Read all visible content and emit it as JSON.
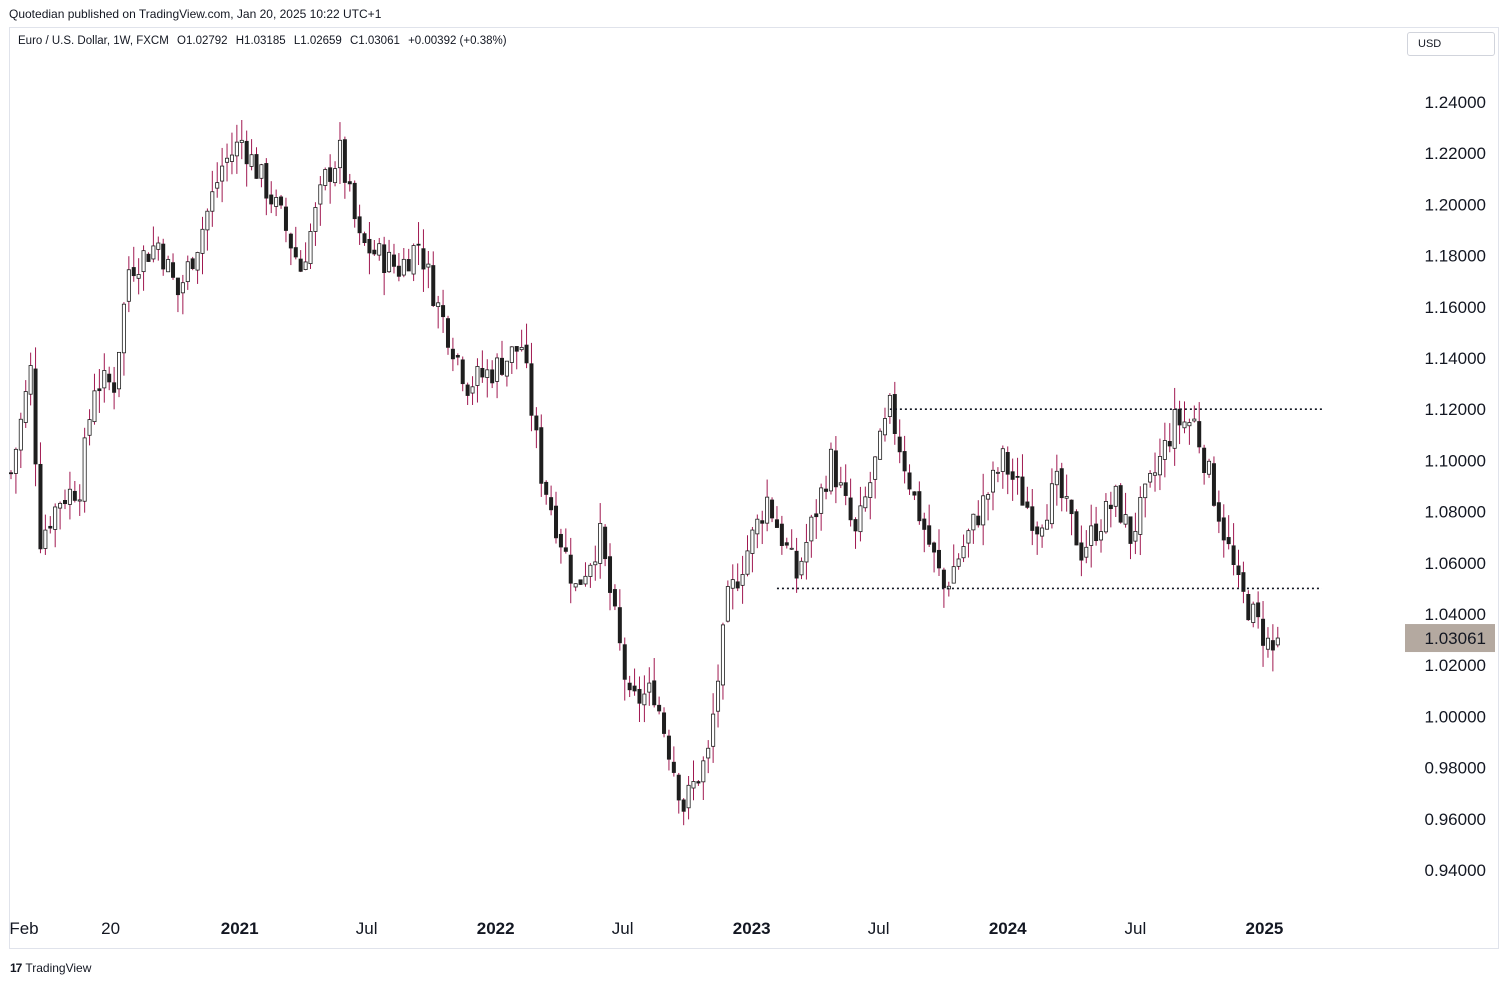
{
  "header": {
    "published": "Quotedian published on TradingView.com, Jan 20, 2025 10:22 UTC+1"
  },
  "symbol": {
    "name": "Euro / U.S. Dollar, 1W, FXCM",
    "open": "O1.02792",
    "high": "H1.03185",
    "low": "L1.02659",
    "close": "C1.03061",
    "change": "+0.00392 (+0.38%)"
  },
  "currency_button": {
    "label": "USD"
  },
  "footer": {
    "logo_text": "TradingView",
    "logo_mark": "17"
  },
  "colors": {
    "candle": "#1e1e1e",
    "wick": "#a01850",
    "label_bg": "#b4a9a0",
    "dotted": "#131722"
  },
  "chart_data": {
    "type": "candlestick",
    "title": "Euro / U.S. Dollar, 1W, FXCM",
    "ylim": [
      0.93,
      1.255
    ],
    "y_ticks": [
      "1.24000",
      "1.22000",
      "1.20000",
      "1.18000",
      "1.16000",
      "1.14000",
      "1.12000",
      "1.10000",
      "1.08000",
      "1.06000",
      "1.04000",
      "1.02000",
      "1.00000",
      "0.98000",
      "0.96000",
      "0.94000"
    ],
    "x_ticks": [
      {
        "label": "Feb",
        "date": "2020-02-01",
        "bold": false
      },
      {
        "label": "20",
        "date": "2020-07-01",
        "bold": false
      },
      {
        "label": "2021",
        "date": "2021-01-01",
        "bold": true
      },
      {
        "label": "Jul",
        "date": "2021-07-01",
        "bold": false
      },
      {
        "label": "2022",
        "date": "2022-01-01",
        "bold": true
      },
      {
        "label": "Jul",
        "date": "2022-07-01",
        "bold": false
      },
      {
        "label": "2023",
        "date": "2023-01-01",
        "bold": true
      },
      {
        "label": "Jul",
        "date": "2023-07-01",
        "bold": false
      },
      {
        "label": "2024",
        "date": "2024-01-01",
        "bold": true
      },
      {
        "label": "Jul",
        "date": "2024-07-01",
        "bold": false
      },
      {
        "label": "2025",
        "date": "2025-01-01",
        "bold": true
      }
    ],
    "last_price": "1.03061",
    "last_price_value": 1.03061,
    "horizontal_lines": [
      {
        "name": "resistance",
        "y": 1.12,
        "from": "2023-07-17",
        "to": "2025-03-24"
      },
      {
        "name": "support",
        "y": 1.05,
        "from": "2023-02-06",
        "to": "2025-03-24"
      }
    ],
    "price_path": [
      [
        "2020-02-10",
        1.095
      ],
      [
        "2020-03-09",
        1.135
      ],
      [
        "2020-03-23",
        1.07
      ],
      [
        "2020-04-20",
        1.085
      ],
      [
        "2020-05-18",
        1.09
      ],
      [
        "2020-06-08",
        1.13
      ],
      [
        "2020-07-06",
        1.13
      ],
      [
        "2020-07-27",
        1.175
      ],
      [
        "2020-09-07",
        1.185
      ],
      [
        "2020-10-05",
        1.165
      ],
      [
        "2020-11-02",
        1.185
      ],
      [
        "2020-12-07",
        1.215
      ],
      [
        "2021-01-04",
        1.225
      ],
      [
        "2021-03-01",
        1.195
      ],
      [
        "2021-03-29",
        1.175
      ],
      [
        "2021-05-03",
        1.21
      ],
      [
        "2021-05-24",
        1.22
      ],
      [
        "2021-06-21",
        1.185
      ],
      [
        "2021-08-16",
        1.175
      ],
      [
        "2021-09-13",
        1.185
      ],
      [
        "2021-10-11",
        1.16
      ],
      [
        "2021-11-22",
        1.13
      ],
      [
        "2021-12-27",
        1.135
      ],
      [
        "2022-02-07",
        1.145
      ],
      [
        "2022-03-07",
        1.095
      ],
      [
        "2022-04-25",
        1.05
      ],
      [
        "2022-05-30",
        1.07
      ],
      [
        "2022-07-11",
        1.005
      ],
      [
        "2022-08-15",
        1.01
      ],
      [
        "2022-09-26",
        0.965
      ],
      [
        "2022-10-31",
        0.985
      ],
      [
        "2022-11-28",
        1.045
      ],
      [
        "2023-01-23",
        1.085
      ],
      [
        "2023-03-06",
        1.055
      ],
      [
        "2023-04-24",
        1.1
      ],
      [
        "2023-05-29",
        1.07
      ],
      [
        "2023-07-17",
        1.12
      ],
      [
        "2023-08-21",
        1.085
      ],
      [
        "2023-10-02",
        1.05
      ],
      [
        "2023-12-25",
        1.1
      ],
      [
        "2024-02-12",
        1.075
      ],
      [
        "2024-03-11",
        1.09
      ],
      [
        "2024-04-15",
        1.065
      ],
      [
        "2024-06-03",
        1.085
      ],
      [
        "2024-06-24",
        1.07
      ],
      [
        "2024-08-26",
        1.115
      ],
      [
        "2024-09-23",
        1.115
      ],
      [
        "2024-10-28",
        1.08
      ],
      [
        "2024-11-25",
        1.05
      ],
      [
        "2025-01-13",
        1.025
      ],
      [
        "2025-01-20",
        1.0306
      ]
    ]
  }
}
